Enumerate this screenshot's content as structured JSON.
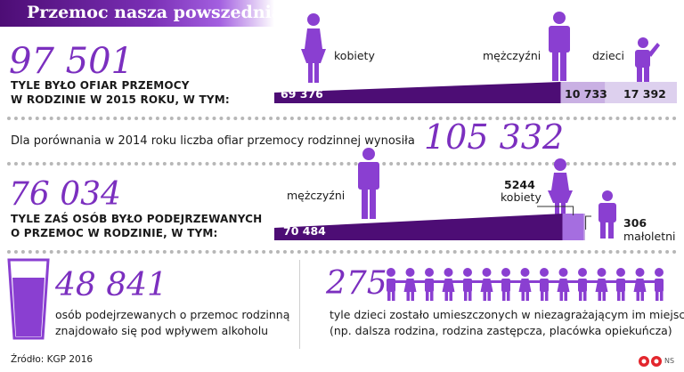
{
  "header": {
    "title": "Przemoc nasza powszednia"
  },
  "victims": {
    "total": "97 501",
    "caption_line1": "TYLE BYŁO OFIAR PRZEMOCY",
    "caption_line2": "W RODZINIE W 2015 ROKU, W TYM:",
    "women_label": "kobiety",
    "men_label": "mężczyźni",
    "children_label": "dzieci",
    "women_value": "69 376",
    "men_value": "10 733",
    "children_value": "17 392"
  },
  "comparison": {
    "text": "Dla porównania w 2014 roku liczba ofiar przemocy rodzinnej wynosiła",
    "value": "105 332"
  },
  "suspects": {
    "total": "76 034",
    "caption_line1": "TYLE ZAŚ OSÓB BYŁO PODEJRZEWANYCH",
    "caption_line2": "O PRZEMOC W RODZINIE, W TYM:",
    "men_label": "mężczyźni",
    "men_value": "70 484",
    "women_value": "5244",
    "women_label": "kobiety",
    "minors_value": "306",
    "minors_label": "małoletni"
  },
  "alcohol": {
    "value": "48 841",
    "text_line1": "osób podejrzewanych o przemoc rodzinną",
    "text_line2": "znajdowało się pod wpływem alkoholu"
  },
  "children_moved": {
    "value": "275",
    "text_line1": "tyle dzieci zostało umieszczonych w niezagrażającym im miejscu",
    "text_line2": "(np. dalsza rodzina, rodzina zastępcza, placówka opiekuńcza)"
  },
  "footer": {
    "source": "Źródło: KGP 2016",
    "logo_text": "NS"
  },
  "colors": {
    "dark_purple": "#4d0d75",
    "purple": "#7b2fbf",
    "light_purple": "#c9b0e3",
    "icon_purple": "#8a3fd1"
  },
  "chart_data": [
    {
      "type": "bar",
      "stacked": true,
      "orientation": "horizontal",
      "title": "97 501",
      "categories": [
        "kobiety",
        "mężczyźni",
        "dzieci"
      ],
      "values": [
        69376,
        10733,
        17392
      ],
      "total": 97501
    },
    {
      "type": "bar",
      "stacked": true,
      "orientation": "horizontal",
      "title": "76 034",
      "categories": [
        "mężczyźni",
        "kobiety",
        "małoletni"
      ],
      "values": [
        70484,
        5244,
        306
      ],
      "total": 76034
    }
  ]
}
